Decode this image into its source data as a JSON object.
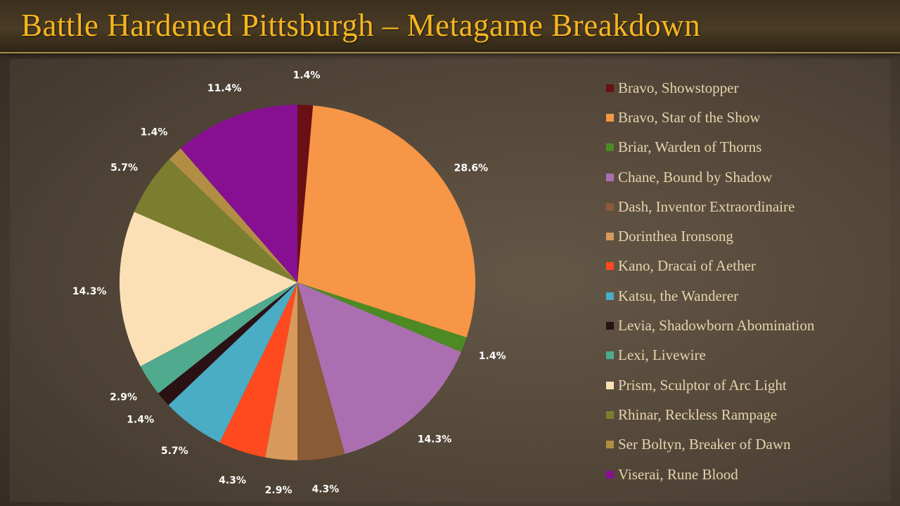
{
  "title": "Battle Hardened Pittsburgh – Metagame Breakdown",
  "chart_data": {
    "type": "pie",
    "title": "Battle Hardened Pittsburgh – Metagame Breakdown",
    "legend_position": "right",
    "categories": [
      "Bravo, Showstopper",
      "Bravo, Star of the Show",
      "Briar, Warden of Thorns",
      "Chane, Bound by Shadow",
      "Dash, Inventor Extraordinaire",
      "Dorinthea Ironsong",
      "Kano, Dracai of Aether",
      "Katsu, the Wanderer",
      "Levia, Shadowborn Abomination",
      "Lexi, Livewire",
      "Prism, Sculptor of Arc Light",
      "Rhinar, Reckless Rampage",
      "Ser Boltyn, Breaker of Dawn",
      "Viserai, Rune Blood"
    ],
    "values": [
      1.4,
      28.6,
      1.4,
      14.3,
      4.3,
      2.9,
      4.3,
      5.7,
      1.4,
      2.9,
      14.3,
      5.7,
      1.4,
      11.4
    ],
    "labels": [
      "1.4%",
      "28.6%",
      "1.4%",
      "14.3%",
      "4.3%",
      "2.9%",
      "4.3%",
      "5.7%",
      "1.4%",
      "2.9%",
      "14.3%",
      "5.7%",
      "1.4%",
      "11.4%"
    ],
    "colors": [
      "#6b0f15",
      "#f79646",
      "#4e8a24",
      "#ab6fb1",
      "#8b5a36",
      "#d79a5c",
      "#ff4a1f",
      "#4aacc5",
      "#2a1114",
      "#4faa8e",
      "#fbe0b5",
      "#7b7d2f",
      "#b28e45",
      "#871092"
    ]
  }
}
